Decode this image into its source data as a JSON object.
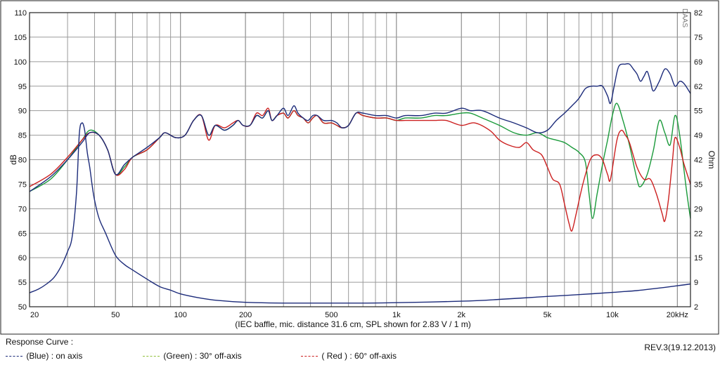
{
  "chart_data": {
    "type": "line",
    "x_scale": "log",
    "xlim": [
      20,
      23000
    ],
    "ylim": [
      50,
      110
    ],
    "y2lim": [
      2,
      82
    ],
    "grid": true,
    "xlabel": "(IEC baffle, mic. distance 31.6 cm, SPL shown for 2.83 V / 1 m)",
    "ylabel": "dB",
    "y2label": "Ohm",
    "x_ticks": [
      {
        "value": 20,
        "label": "20"
      },
      {
        "value": 50,
        "label": "50"
      },
      {
        "value": 100,
        "label": "100"
      },
      {
        "value": 200,
        "label": "200"
      },
      {
        "value": 500,
        "label": "500"
      },
      {
        "value": 1000,
        "label": "1k"
      },
      {
        "value": 2000,
        "label": "2k"
      },
      {
        "value": 5000,
        "label": "5k"
      },
      {
        "value": 10000,
        "label": "10k"
      },
      {
        "value": 20000,
        "label": "20kHz"
      }
    ],
    "y_ticks": [
      "50",
      "55",
      "60",
      "65",
      "70",
      "75",
      "80",
      "85",
      "90",
      "95",
      "100",
      "105",
      "110"
    ],
    "y2_ticks": [
      "2",
      "9",
      "15",
      "22",
      "29",
      "35",
      "42",
      "49",
      "55",
      "62",
      "69",
      "75",
      "82"
    ],
    "watermark": "DAAS",
    "series": [
      {
        "name": "(Green) : 30° off-axis",
        "color": "#1a9a3a",
        "points": [
          [
            20,
            73.5
          ],
          [
            25,
            76
          ],
          [
            30,
            80
          ],
          [
            35,
            84
          ],
          [
            38,
            86
          ],
          [
            42,
            85
          ],
          [
            46,
            82
          ],
          [
            50,
            77
          ],
          [
            55,
            78.5
          ],
          [
            60,
            80.5
          ],
          [
            70,
            82
          ],
          [
            80,
            84.5
          ],
          [
            85,
            85.5
          ],
          [
            95,
            84.5
          ],
          [
            105,
            85
          ],
          [
            115,
            88
          ],
          [
            125,
            89
          ],
          [
            135,
            85
          ],
          [
            145,
            87
          ],
          [
            160,
            86
          ],
          [
            175,
            87
          ],
          [
            185,
            88
          ],
          [
            195,
            87
          ],
          [
            210,
            87
          ],
          [
            225,
            89
          ],
          [
            240,
            88.5
          ],
          [
            255,
            90
          ],
          [
            265,
            88
          ],
          [
            280,
            89
          ],
          [
            300,
            89.5
          ],
          [
            315,
            88.5
          ],
          [
            335,
            90
          ],
          [
            350,
            89
          ],
          [
            370,
            88.5
          ],
          [
            390,
            87.5
          ],
          [
            410,
            88.5
          ],
          [
            430,
            89
          ],
          [
            460,
            87.5
          ],
          [
            500,
            87.5
          ],
          [
            530,
            87
          ],
          [
            560,
            86.5
          ],
          [
            600,
            87
          ],
          [
            650,
            89.5
          ],
          [
            700,
            89
          ],
          [
            800,
            88.5
          ],
          [
            900,
            88.5
          ],
          [
            1000,
            88
          ],
          [
            1100,
            88.5
          ],
          [
            1300,
            88.5
          ],
          [
            1500,
            89
          ],
          [
            1700,
            89
          ],
          [
            2000,
            89.5
          ],
          [
            2200,
            89.5
          ],
          [
            2500,
            88.5
          ],
          [
            3000,
            87
          ],
          [
            3500,
            85.5
          ],
          [
            4000,
            85
          ],
          [
            4500,
            85.5
          ],
          [
            5000,
            84.5
          ],
          [
            5500,
            84
          ],
          [
            6000,
            83.5
          ],
          [
            6500,
            82.5
          ],
          [
            7000,
            81.5
          ],
          [
            7500,
            79.5
          ],
          [
            7800,
            73
          ],
          [
            8100,
            68
          ],
          [
            8500,
            73
          ],
          [
            9000,
            79
          ],
          [
            9500,
            84
          ],
          [
            10000,
            89
          ],
          [
            10500,
            91.5
          ],
          [
            11200,
            88
          ],
          [
            12000,
            83
          ],
          [
            13000,
            76
          ],
          [
            13500,
            74.5
          ],
          [
            14500,
            77
          ],
          [
            15500,
            82
          ],
          [
            16500,
            88
          ],
          [
            17500,
            85.5
          ],
          [
            18500,
            83
          ],
          [
            19500,
            89
          ],
          [
            20500,
            85
          ],
          [
            22000,
            74
          ],
          [
            23000,
            68
          ]
        ]
      },
      {
        "name": "( Red ) : 60° off-axis",
        "color": "#cc2020",
        "points": [
          [
            20,
            74.5
          ],
          [
            25,
            77
          ],
          [
            30,
            80.5
          ],
          [
            35,
            84
          ],
          [
            38,
            85.5
          ],
          [
            42,
            85
          ],
          [
            46,
            82
          ],
          [
            50,
            77
          ],
          [
            55,
            78
          ],
          [
            60,
            80.5
          ],
          [
            70,
            82
          ],
          [
            80,
            84.5
          ],
          [
            85,
            85.5
          ],
          [
            95,
            84.5
          ],
          [
            105,
            85
          ],
          [
            115,
            88
          ],
          [
            125,
            89
          ],
          [
            135,
            84
          ],
          [
            145,
            87
          ],
          [
            160,
            86.5
          ],
          [
            175,
            87.5
          ],
          [
            185,
            88
          ],
          [
            195,
            87
          ],
          [
            210,
            87
          ],
          [
            225,
            89.5
          ],
          [
            240,
            89
          ],
          [
            255,
            90.5
          ],
          [
            265,
            88
          ],
          [
            280,
            89
          ],
          [
            300,
            89.5
          ],
          [
            315,
            88.5
          ],
          [
            335,
            90
          ],
          [
            350,
            89
          ],
          [
            370,
            88.5
          ],
          [
            390,
            87.5
          ],
          [
            410,
            88.5
          ],
          [
            430,
            89
          ],
          [
            460,
            87.5
          ],
          [
            500,
            87.5
          ],
          [
            530,
            87
          ],
          [
            560,
            86.5
          ],
          [
            600,
            87
          ],
          [
            650,
            89.5
          ],
          [
            700,
            89
          ],
          [
            800,
            88.5
          ],
          [
            900,
            88.5
          ],
          [
            1000,
            88
          ],
          [
            1100,
            88
          ],
          [
            1300,
            88
          ],
          [
            1500,
            88
          ],
          [
            1700,
            88
          ],
          [
            2000,
            87
          ],
          [
            2300,
            87.5
          ],
          [
            2700,
            86
          ],
          [
            3000,
            84
          ],
          [
            3300,
            83
          ],
          [
            3700,
            82.5
          ],
          [
            4000,
            83.5
          ],
          [
            4300,
            82
          ],
          [
            4700,
            81
          ],
          [
            5000,
            78.5
          ],
          [
            5300,
            76
          ],
          [
            5700,
            75
          ],
          [
            6000,
            71
          ],
          [
            6300,
            67
          ],
          [
            6500,
            65.5
          ],
          [
            6800,
            69
          ],
          [
            7300,
            75
          ],
          [
            7900,
            80
          ],
          [
            8500,
            81
          ],
          [
            9000,
            80
          ],
          [
            9500,
            77
          ],
          [
            9800,
            76
          ],
          [
            10500,
            84
          ],
          [
            11000,
            86
          ],
          [
            11500,
            85
          ],
          [
            12000,
            83.5
          ],
          [
            13000,
            78.5
          ],
          [
            14000,
            76
          ],
          [
            15000,
            76
          ],
          [
            16000,
            73
          ],
          [
            17000,
            69
          ],
          [
            17500,
            67.5
          ],
          [
            18200,
            72
          ],
          [
            19000,
            80
          ],
          [
            19500,
            84.5
          ],
          [
            20500,
            82.5
          ],
          [
            21500,
            79
          ],
          [
            23000,
            75
          ]
        ]
      },
      {
        "name": "(Blue) : on axis",
        "color": "#1c2b7a",
        "points": [
          [
            20,
            73.5
          ],
          [
            25,
            76.5
          ],
          [
            30,
            80
          ],
          [
            35,
            83.5
          ],
          [
            38,
            85.5
          ],
          [
            42,
            85
          ],
          [
            46,
            82
          ],
          [
            50,
            77
          ],
          [
            55,
            79
          ],
          [
            60,
            80.5
          ],
          [
            70,
            82.5
          ],
          [
            80,
            84.5
          ],
          [
            85,
            85.5
          ],
          [
            95,
            84.5
          ],
          [
            105,
            85
          ],
          [
            115,
            88
          ],
          [
            125,
            89
          ],
          [
            135,
            85
          ],
          [
            145,
            87
          ],
          [
            160,
            86
          ],
          [
            175,
            87
          ],
          [
            185,
            88
          ],
          [
            195,
            87
          ],
          [
            210,
            87
          ],
          [
            225,
            89
          ],
          [
            240,
            88.5
          ],
          [
            255,
            90
          ],
          [
            265,
            88
          ],
          [
            280,
            89
          ],
          [
            300,
            90.5
          ],
          [
            315,
            89
          ],
          [
            335,
            91
          ],
          [
            350,
            89.5
          ],
          [
            370,
            88.5
          ],
          [
            390,
            88
          ],
          [
            410,
            89
          ],
          [
            430,
            89
          ],
          [
            460,
            88
          ],
          [
            500,
            88
          ],
          [
            530,
            87.5
          ],
          [
            560,
            86.5
          ],
          [
            600,
            87
          ],
          [
            650,
            89.5
          ],
          [
            700,
            89.5
          ],
          [
            800,
            89
          ],
          [
            900,
            89
          ],
          [
            1000,
            88.5
          ],
          [
            1100,
            89
          ],
          [
            1300,
            89
          ],
          [
            1500,
            89.5
          ],
          [
            1700,
            89.5
          ],
          [
            2000,
            90.5
          ],
          [
            2200,
            90
          ],
          [
            2500,
            90
          ],
          [
            3000,
            88.5
          ],
          [
            3500,
            87.5
          ],
          [
            4000,
            86.5
          ],
          [
            4500,
            85.5
          ],
          [
            5000,
            86
          ],
          [
            5500,
            88
          ],
          [
            6000,
            89.5
          ],
          [
            6500,
            91
          ],
          [
            7000,
            92.5
          ],
          [
            7500,
            94.5
          ],
          [
            8000,
            95
          ],
          [
            8500,
            95
          ],
          [
            9000,
            95
          ],
          [
            9500,
            93
          ],
          [
            9800,
            91.5
          ],
          [
            10200,
            95
          ],
          [
            10700,
            99
          ],
          [
            11500,
            99.5
          ],
          [
            12000,
            99.5
          ],
          [
            12500,
            98.5
          ],
          [
            13000,
            97.5
          ],
          [
            13500,
            96
          ],
          [
            14000,
            97
          ],
          [
            14500,
            98
          ],
          [
            15000,
            96
          ],
          [
            15500,
            94
          ],
          [
            16500,
            96
          ],
          [
            17500,
            98.5
          ],
          [
            18500,
            97.5
          ],
          [
            19500,
            95
          ],
          [
            20500,
            96
          ],
          [
            21500,
            95.5
          ],
          [
            23000,
            93.5
          ]
        ]
      },
      {
        "name": "Impedance",
        "axis": "right",
        "color": "#1c2b7a",
        "points": [
          [
            20,
            5.8
          ],
          [
            22,
            6.8
          ],
          [
            24,
            8.2
          ],
          [
            26,
            10
          ],
          [
            28,
            13
          ],
          [
            30,
            17
          ],
          [
            31.5,
            21
          ],
          [
            33,
            33
          ],
          [
            34,
            49
          ],
          [
            35,
            52
          ],
          [
            36,
            50
          ],
          [
            37,
            44
          ],
          [
            38,
            40
          ],
          [
            39,
            35
          ],
          [
            40,
            31
          ],
          [
            42,
            26
          ],
          [
            45,
            22
          ],
          [
            50,
            16
          ],
          [
            55,
            13.5
          ],
          [
            60,
            12
          ],
          [
            70,
            9.5
          ],
          [
            80,
            7.5
          ],
          [
            90,
            6.5
          ],
          [
            100,
            5.5
          ],
          [
            120,
            4.5
          ],
          [
            150,
            3.7
          ],
          [
            200,
            3.2
          ],
          [
            300,
            3
          ],
          [
            500,
            3
          ],
          [
            700,
            3
          ],
          [
            1000,
            3.1
          ],
          [
            2000,
            3.5
          ],
          [
            3000,
            4
          ],
          [
            5000,
            4.8
          ],
          [
            7000,
            5.3
          ],
          [
            10000,
            5.9
          ],
          [
            13000,
            6.4
          ],
          [
            16000,
            7
          ],
          [
            20000,
            7.7
          ],
          [
            23000,
            8.2
          ]
        ]
      }
    ]
  },
  "legend": {
    "title": "Response Curve :",
    "items": [
      {
        "label": "(Blue)  : on axis",
        "color": "#1c2b7a"
      },
      {
        "label": "(Green) : 30° off-axis",
        "color": "#8fbf3a"
      },
      {
        "label": "( Red ) : 60° off-axis",
        "color": "#cc2020"
      }
    ]
  },
  "revision": "REV.3(19.12.2013)"
}
